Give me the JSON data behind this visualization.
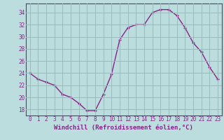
{
  "x": [
    0,
    1,
    2,
    3,
    4,
    5,
    6,
    7,
    8,
    9,
    10,
    11,
    12,
    13,
    14,
    15,
    16,
    17,
    18,
    19,
    20,
    21,
    22,
    23
  ],
  "y": [
    24.0,
    23.0,
    22.5,
    22.0,
    20.5,
    20.0,
    19.0,
    17.8,
    17.8,
    20.5,
    23.8,
    29.5,
    31.5,
    32.0,
    32.0,
    34.0,
    34.5,
    34.5,
    33.5,
    31.5,
    29.0,
    27.5,
    25.0,
    23.0
  ],
  "xlabel": "Windchill (Refroidissement éolien,°C)",
  "yticks": [
    18,
    20,
    22,
    24,
    26,
    28,
    30,
    32,
    34
  ],
  "xticks": [
    0,
    1,
    2,
    3,
    4,
    5,
    6,
    7,
    8,
    9,
    10,
    11,
    12,
    13,
    14,
    15,
    16,
    17,
    18,
    19,
    20,
    21,
    22,
    23
  ],
  "ylim": [
    17.0,
    35.5
  ],
  "xlim": [
    -0.5,
    23.5
  ],
  "line_color": "#882288",
  "marker": "+",
  "bg_color": "#bbdddd",
  "grid_color": "#99bbbb",
  "label_color": "#882288",
  "font_name": "monospace",
  "tick_fontsize": 5.5,
  "xlabel_fontsize": 6.5
}
